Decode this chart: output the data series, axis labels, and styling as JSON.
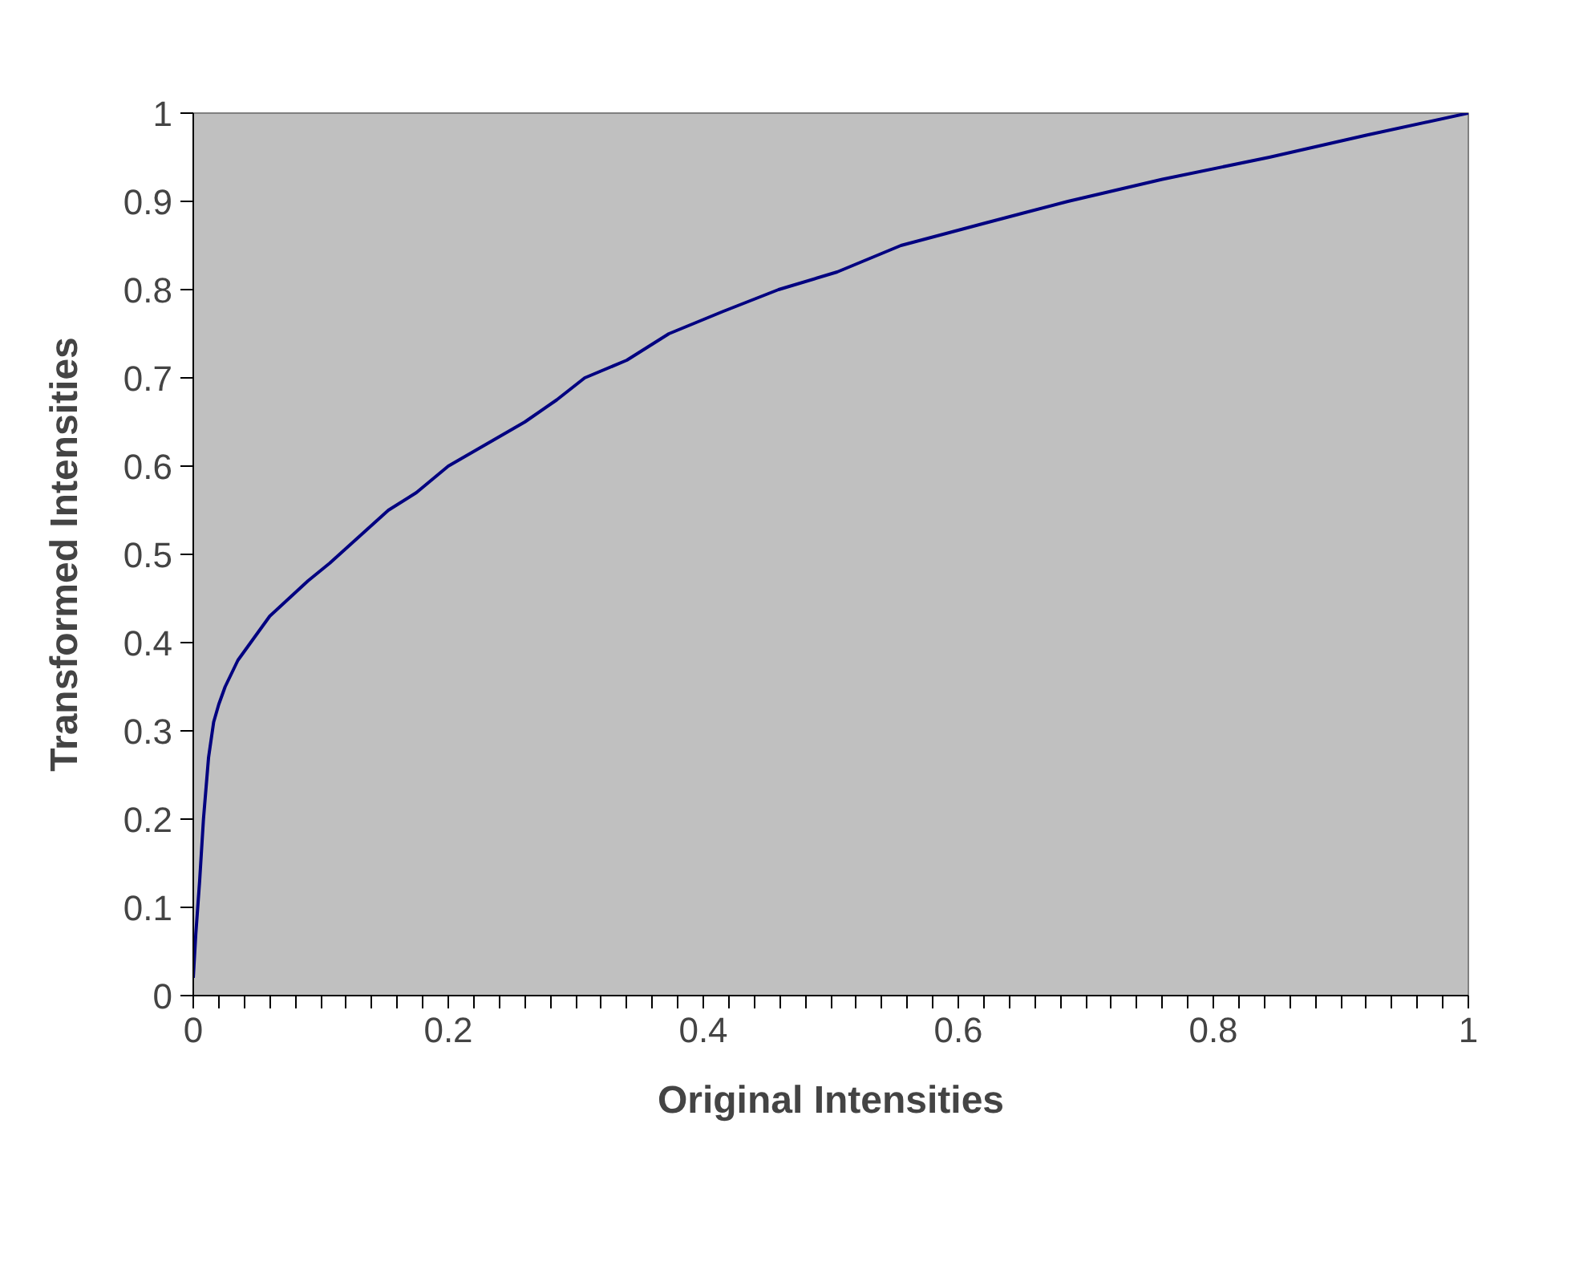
{
  "chart_data": {
    "type": "line",
    "xlabel": "Original Intensities",
    "ylabel": "Transformed Intensities",
    "x": [
      0,
      0.002,
      0.005,
      0.008,
      0.012,
      0.016,
      0.02,
      0.025,
      0.035,
      0.045,
      0.06,
      0.075,
      0.09,
      0.107,
      0.13,
      0.153,
      0.175,
      0.2,
      0.23,
      0.26,
      0.285,
      0.307,
      0.34,
      0.373,
      0.415,
      0.459,
      0.505,
      0.555,
      0.62,
      0.686,
      0.76,
      0.844,
      0.92,
      1
    ],
    "series": [
      {
        "color": "#000080",
        "values": [
          0.02,
          0.07,
          0.13,
          0.2,
          0.27,
          0.31,
          0.33,
          0.35,
          0.38,
          0.4,
          0.43,
          0.45,
          0.47,
          0.49,
          0.52,
          0.55,
          0.57,
          0.6,
          0.625,
          0.65,
          0.675,
          0.7,
          0.72,
          0.75,
          0.775,
          0.8,
          0.82,
          0.85,
          0.875,
          0.9,
          0.925,
          0.95,
          0.975,
          1
        ]
      }
    ],
    "xlim": [
      0,
      1
    ],
    "ylim": [
      0,
      1
    ],
    "xticks": [
      0,
      {
        "value": 0.02,
        "label": null
      },
      {
        "value": 0.04,
        "label": null
      },
      {
        "value": 0.06,
        "label": null
      },
      {
        "value": 0.08,
        "label": null
      },
      {
        "value": 0.1,
        "label": null
      },
      {
        "value": 0.12,
        "label": null
      },
      {
        "value": 0.14,
        "label": null
      },
      {
        "value": 0.16,
        "label": null
      },
      {
        "value": 0.18,
        "label": null
      },
      0.2,
      {
        "value": 0.22,
        "label": null
      },
      {
        "value": 0.24,
        "label": null
      },
      {
        "value": 0.26,
        "label": null
      },
      {
        "value": 0.28,
        "label": null
      },
      {
        "value": 0.3,
        "label": null
      },
      {
        "value": 0.32,
        "label": null
      },
      {
        "value": 0.34,
        "label": null
      },
      {
        "value": 0.36,
        "label": null
      },
      {
        "value": 0.38,
        "label": null
      },
      0.4,
      {
        "value": 0.42,
        "label": null
      },
      {
        "value": 0.44,
        "label": null
      },
      {
        "value": 0.46,
        "label": null
      },
      {
        "value": 0.48,
        "label": null
      },
      {
        "value": 0.5,
        "label": null
      },
      {
        "value": 0.52,
        "label": null
      },
      {
        "value": 0.54,
        "label": null
      },
      {
        "value": 0.56,
        "label": null
      },
      {
        "value": 0.58,
        "label": null
      },
      0.6,
      {
        "value": 0.62,
        "label": null
      },
      {
        "value": 0.64,
        "label": null
      },
      {
        "value": 0.66,
        "label": null
      },
      {
        "value": 0.68,
        "label": null
      },
      {
        "value": 0.7,
        "label": null
      },
      {
        "value": 0.72,
        "label": null
      },
      {
        "value": 0.74,
        "label": null
      },
      {
        "value": 0.76,
        "label": null
      },
      {
        "value": 0.78,
        "label": null
      },
      0.8,
      {
        "value": 0.82,
        "label": null
      },
      {
        "value": 0.84,
        "label": null
      },
      {
        "value": 0.86,
        "label": null
      },
      {
        "value": 0.88,
        "label": null
      },
      {
        "value": 0.9,
        "label": null
      },
      {
        "value": 0.92,
        "label": null
      },
      {
        "value": 0.94,
        "label": null
      },
      {
        "value": 0.96,
        "label": null
      },
      {
        "value": 0.98,
        "label": null
      },
      1
    ],
    "yticks": [
      0,
      0.1,
      0.2,
      0.3,
      0.4,
      0.5,
      0.6,
      0.7,
      0.8,
      0.9,
      1
    ],
    "marker": "none",
    "line_style": "solid"
  }
}
